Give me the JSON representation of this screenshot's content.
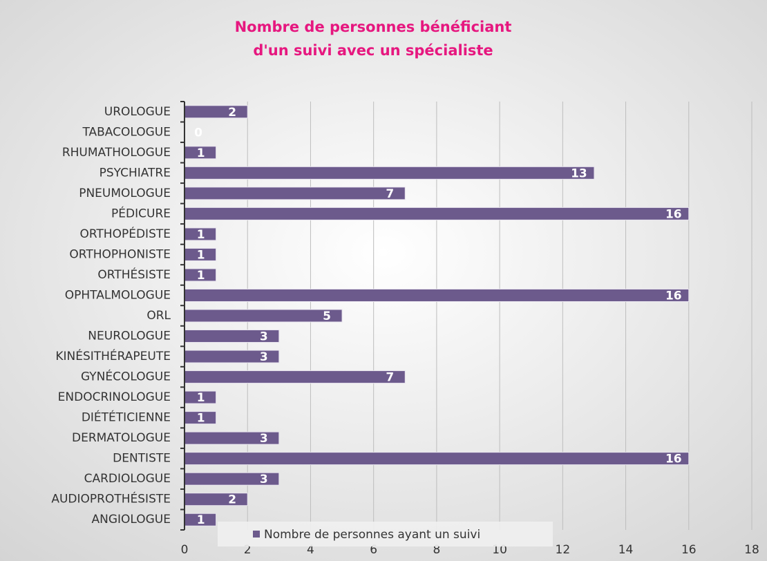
{
  "chart_data": {
    "type": "barh",
    "title": [
      "Nombre de personnes bénéficiant",
      "d'un suivi avec un spécialiste"
    ],
    "categories": [
      "UROLOGUE",
      "TABACOLOGUE",
      "RHUMATHOLOGUE",
      "PSYCHIATRE",
      "PNEUMOLOGUE",
      "PÉDICURE",
      "ORTHOPÉDISTE",
      "ORTHOPHONISTE",
      "ORTHÉSISTE",
      "OPHTALMOLOGUE",
      "ORL",
      "NEUROLOGUE",
      "KINÉSITHÉRAPEUTE",
      "GYNÉCOLOGUE",
      "ENDOCRINOLOGUE",
      "DIÉTÉTICIENNE",
      "DERMATOLOGUE",
      "DENTISTE",
      "CARDIOLOGUE",
      "AUDIOPROTHÉSISTE",
      "ANGIOLOGUE"
    ],
    "series": [
      {
        "name": "Nombre de personnes ayant un suivi",
        "color": "#6c5a8c",
        "values": [
          2,
          0,
          1,
          13,
          7,
          16,
          1,
          1,
          1,
          16,
          5,
          3,
          3,
          7,
          1,
          1,
          3,
          16,
          3,
          2,
          1
        ]
      }
    ],
    "xlim": [
      0,
      18
    ],
    "xticks": [
      0,
      2,
      4,
      6,
      8,
      10,
      12,
      14,
      16,
      18
    ],
    "grid": true,
    "legend": "bottom"
  }
}
